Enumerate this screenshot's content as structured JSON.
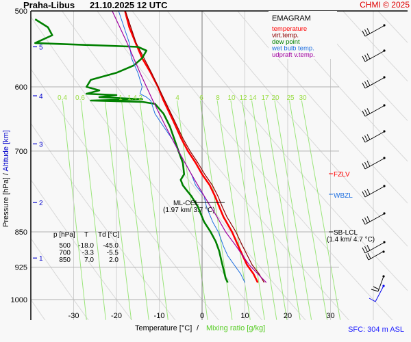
{
  "header": {
    "station": "Praha-Libus",
    "datetime": "21.10.2025 12 UTC",
    "copyright": "CHMI © 2025"
  },
  "footer": {
    "sfc": "SFC: 304 m ASL"
  },
  "chart_data": {
    "type": "line",
    "title": "Praha-Libus 21.10.2025 12 UTC",
    "diagram": "EMAGRAM",
    "xlabel": "Temperature [°C]",
    "xlabel2": "Mixing ratio [g/kg]",
    "ylabel": "Pressure [hPa]",
    "ylabel2": "Altitude [km]",
    "xlim": [
      -40,
      35
    ],
    "ylim_hpa": [
      1050,
      500
    ],
    "x_ticks": [
      -30,
      -20,
      -10,
      0,
      10,
      20,
      30
    ],
    "pressure_ticks": [
      500,
      600,
      700,
      850,
      925,
      1000
    ],
    "altitude_ticks": [
      1,
      2,
      3,
      4,
      5
    ],
    "mixing_ratio_labels": [
      0.4,
      0.6,
      1,
      1.4,
      2,
      4,
      6,
      8,
      10,
      12,
      14,
      17,
      20,
      25,
      30
    ],
    "grid": true,
    "legend": {
      "placement": "top-right",
      "title": "EMAGRAM",
      "entries": [
        {
          "name": "temperature",
          "color": "#ff0000"
        },
        {
          "name": "virt.temp.",
          "color": "#8b0000"
        },
        {
          "name": "dew point",
          "color": "#008000"
        },
        {
          "name": "wet bulb temp.",
          "color": "#1e6fe0"
        },
        {
          "name": "udpraft v.temp.",
          "color": "#a000a0"
        }
      ]
    },
    "series": [
      {
        "name": "temperature",
        "color": "#ff0000",
        "p": [
          500,
          520,
          540,
          560,
          580,
          600,
          620,
          650,
          680,
          700,
          720,
          740,
          760,
          780,
          800,
          820,
          850,
          880,
          900,
          920,
          940,
          960
        ],
        "t": [
          -18.0,
          -17.0,
          -15.5,
          -14.0,
          -12.0,
          -10.3,
          -9.0,
          -6.8,
          -4.8,
          -3.3,
          -1.5,
          0.0,
          1.8,
          3.0,
          4.0,
          5.0,
          7.0,
          8.5,
          9.5,
          10.5,
          12.0,
          13.0
        ]
      },
      {
        "name": "virt.temp.",
        "color": "#8b0000",
        "p": [
          500,
          540,
          580,
          620,
          650,
          680,
          700,
          720,
          740,
          760,
          780,
          800,
          820,
          850,
          880,
          900,
          920,
          940,
          960
        ],
        "t": [
          -17.9,
          -15.4,
          -11.8,
          -8.7,
          -6.5,
          -4.4,
          -2.8,
          -1.0,
          0.6,
          2.4,
          3.7,
          4.7,
          5.8,
          7.9,
          9.5,
          10.6,
          11.7,
          13.3,
          14.5
        ]
      },
      {
        "name": "dew point",
        "color": "#008000",
        "p": [
          510,
          520,
          530,
          535,
          540,
          545,
          550,
          560,
          570,
          580,
          590,
          600,
          605,
          610,
          612,
          615,
          618,
          620,
          622,
          625,
          640,
          660,
          680,
          700,
          720,
          740,
          750,
          760,
          770,
          780,
          800,
          830,
          850,
          870,
          890,
          910,
          930,
          950,
          960
        ],
        "t": [
          -39,
          -36,
          -35,
          -37,
          -39,
          -15,
          -13,
          -14,
          -16,
          -20,
          -26,
          -27,
          -24,
          -27,
          -20,
          -24,
          -14,
          -26,
          -14,
          -11,
          -9,
          -7.5,
          -6.5,
          -5.5,
          -4.5,
          -4.2,
          -5.0,
          -4.5,
          -3.5,
          -2.5,
          -1.0,
          0.5,
          2.0,
          3.2,
          4.0,
          4.5,
          5.0,
          5.5,
          6.0
        ]
      },
      {
        "name": "wet bulb temp.",
        "color": "#1e6fe0",
        "p": [
          500,
          540,
          560,
          580,
          600,
          610,
          615,
          620,
          640,
          660,
          680,
          700,
          720,
          740,
          760,
          780,
          800,
          830,
          850,
          880,
          900,
          920,
          940,
          960
        ],
        "t": [
          -19.5,
          -17.0,
          -16.5,
          -15.0,
          -14.0,
          -14.5,
          -13.0,
          -12.0,
          -11.0,
          -9.0,
          -7.0,
          -5.5,
          -4.0,
          -2.5,
          -1.5,
          0.5,
          1.0,
          2.5,
          3.8,
          5.0,
          6.0,
          7.5,
          9.0,
          10.0
        ]
      },
      {
        "name": "udpraft v.temp.",
        "color": "#a000a0",
        "p": [
          500,
          540,
          580,
          620,
          660,
          700,
          740,
          780,
          800,
          820,
          850,
          880,
          900,
          920,
          940,
          960
        ],
        "t": [
          -21.0,
          -17.5,
          -14.5,
          -11.5,
          -8.5,
          -5.5,
          -2.5,
          0.5,
          2.0,
          3.5,
          5.5,
          8.0,
          9.5,
          11.0,
          13.0,
          15.0
        ]
      }
    ],
    "table": {
      "headers": [
        "p [hPa]",
        "T",
        "Td [°C]"
      ],
      "rows": [
        [
          "500",
          "-18.0",
          "-45.0"
        ],
        [
          "700",
          "-3.3",
          "-5.5"
        ],
        [
          "850",
          "7.0",
          "2.0"
        ]
      ]
    },
    "annotations": [
      {
        "label": "ML-CCL",
        "detail": "(1.97 km/ 3.7 °C)",
        "p": 790,
        "t": 3.7
      },
      {
        "label": "FZLV",
        "color": "#ff0000",
        "p": 755
      },
      {
        "label": "WBZL",
        "color": "#1e6fe0",
        "p": 790
      },
      {
        "label": "SB-LCL",
        "detail": "(1.4 km/ 4.7 °C)",
        "color": "#000000",
        "p": 845
      }
    ],
    "wind_barbs": {
      "description": "wind barbs along right edge",
      "levels_hpa": [
        510,
        560,
        620,
        690,
        760,
        830,
        900,
        955,
        985
      ],
      "colors": [
        "#000000",
        "#000000",
        "#000000",
        "#000000",
        "#000000",
        "#000000",
        "#000000",
        "#000000",
        "#0000ff"
      ]
    }
  }
}
